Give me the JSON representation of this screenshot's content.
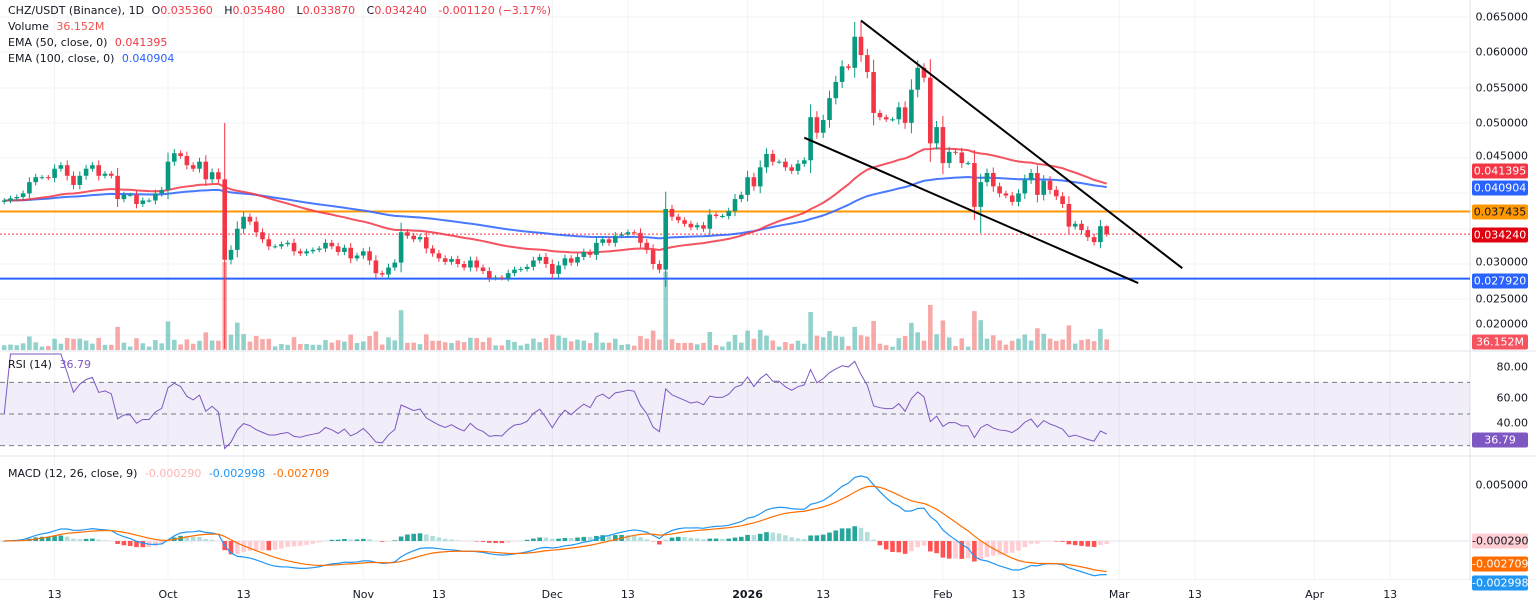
{
  "header": {
    "symbol": "CHZ/USDT (Binance), 1D",
    "open_label": "O",
    "open": "0.035360",
    "high_label": "H",
    "high": "0.035480",
    "low_label": "L",
    "low": "0.033870",
    "close_label": "C",
    "close": "0.034240",
    "change": "-0.001120 (−3.17%)"
  },
  "indicators": {
    "volume": {
      "label": "Volume",
      "value": "36.152M"
    },
    "ema50": {
      "label": "EMA (50, close, 0)",
      "value": "0.041395",
      "color": "#f23645",
      "period": 50
    },
    "ema100": {
      "label": "EMA (100, close, 0)",
      "value": "0.040904",
      "color": "#2962ff",
      "period": 100
    },
    "rsi": {
      "label": "RSI (14)",
      "value": "36.79",
      "color": "#7e57c2",
      "period": 14
    },
    "macd": {
      "label": "MACD (12, 26, close, 9)",
      "hist": "-0.000290",
      "macd": "-0.002998",
      "signal": "-0.002709",
      "macd_color": "#2196f3",
      "signal_color": "#ff6d00"
    }
  },
  "price_axis": [
    "0.065000",
    "0.060000",
    "0.055000",
    "0.050000",
    "0.045000",
    "0.030000",
    "0.025000",
    "0.020000"
  ],
  "rsi_axis": [
    "80.00",
    "60.00",
    "40.00"
  ],
  "macd_axis": [
    "0.005000"
  ],
  "badges": {
    "ema50": "0.041395",
    "ema100": "0.040904",
    "orange_line": "0.037435",
    "last_price": "0.034240",
    "blue_line": "0.027920",
    "volume": "36.152M",
    "rsi": "36.79",
    "macd_hist": "-0.000290",
    "macd_signal": "-0.002709",
    "macd_line": "-0.002998"
  },
  "time_axis": [
    {
      "label": "13",
      "date": "2025-09-13"
    },
    {
      "label": "Oct",
      "date": "2025-10-01"
    },
    {
      "label": "13",
      "date": "2025-10-13"
    },
    {
      "label": "Nov",
      "date": "2025-11-01"
    },
    {
      "label": "13",
      "date": "2025-11-13"
    },
    {
      "label": "Dec",
      "date": "2025-12-01"
    },
    {
      "label": "13",
      "date": "2025-12-13"
    },
    {
      "label": "2026",
      "date": "2026-01-01",
      "bold": true
    },
    {
      "label": "13",
      "date": "2026-01-13"
    },
    {
      "label": "Feb",
      "date": "2026-02-01"
    },
    {
      "label": "13",
      "date": "2026-02-13"
    },
    {
      "label": "Mar",
      "date": "2026-03-01"
    },
    {
      "label": "13",
      "date": "2026-03-13"
    },
    {
      "label": "Apr",
      "date": "2026-04-01"
    },
    {
      "label": "13",
      "date": "2026-04-13"
    }
  ],
  "colors": {
    "up": "#089981",
    "down": "#f23645",
    "vol_up": "#26a69a",
    "vol_down": "#ef5350"
  },
  "chart_data": {
    "type": "candlestick",
    "price_range": [
      0.017,
      0.066
    ],
    "closes_by_month": [
      {
        "month": "2025-09",
        "closes": [
          null,
          null,
          null,
          null,
          0.039,
          0.0393,
          0.0395,
          0.04,
          0.0416,
          0.0423,
          0.0423,
          0.0422,
          0.0435,
          0.044,
          0.0425,
          0.0412,
          0.0425,
          0.0435,
          0.044,
          0.0425,
          0.0428,
          0.0425,
          0.0392,
          0.0398,
          0.0398,
          0.0385,
          0.039,
          0.039,
          0.04,
          0.0405
        ]
      },
      {
        "month": "2025-10",
        "closes": [
          0.0445,
          0.0457,
          0.0453,
          0.044,
          0.0435,
          0.0445,
          0.042,
          0.043,
          0.042,
          0.0306,
          0.032,
          0.035,
          0.0367,
          0.036,
          0.0345,
          0.0335,
          0.0325,
          0.0325,
          0.0328,
          0.033,
          0.0318,
          0.0315,
          0.0318,
          0.032,
          0.0322,
          0.033,
          0.0325,
          0.0317,
          0.0323,
          0.0308,
          0.0312
        ]
      },
      {
        "month": "2025-11",
        "closes": [
          0.0318,
          0.0305,
          0.0287,
          0.0285,
          0.0295,
          0.0302,
          0.0345,
          0.034,
          0.0335,
          0.0338,
          0.0322,
          0.0315,
          0.0308,
          0.0303,
          0.0307,
          0.03,
          0.0295,
          0.0305,
          0.0295,
          0.029,
          0.028,
          0.0281,
          0.028,
          0.0287,
          0.0292,
          0.0293,
          0.0296,
          0.0305,
          0.031,
          0.03
        ]
      },
      {
        "month": "2025-12",
        "closes": [
          0.0286,
          0.0298,
          0.0308,
          0.0302,
          0.031,
          0.0317,
          0.0313,
          0.033,
          0.0335,
          0.033,
          0.034,
          0.0342,
          0.0345,
          0.0344,
          0.033,
          0.032,
          0.03,
          0.0292,
          0.0378,
          0.0367,
          0.0362,
          0.0357,
          0.0352,
          0.0355,
          0.035,
          0.037,
          0.0368,
          0.0368,
          0.0375,
          0.0392,
          0.0398
        ]
      },
      {
        "month": "2026-01",
        "closes": [
          0.0423,
          0.041,
          0.0437,
          0.0456,
          0.0445,
          0.0445,
          0.0437,
          0.0432,
          0.0442,
          0.0447,
          0.0508,
          0.0486,
          0.0504,
          0.0535,
          0.0558,
          0.058,
          0.0578,
          0.0622,
          0.0596,
          0.0572,
          0.0514,
          0.0508,
          0.0505,
          0.0505,
          0.0522,
          0.05,
          0.0547,
          0.0578,
          0.0564,
          0.0471,
          0.0494
        ]
      },
      {
        "month": "2026-02",
        "closes": [
          0.0443,
          0.0459,
          0.0458,
          0.0443,
          0.0443,
          0.0381,
          0.0416,
          0.0429,
          0.041,
          0.04,
          0.0397,
          0.0388,
          0.04,
          0.0419,
          0.0429,
          0.0398,
          0.0418,
          0.0405,
          0.0396,
          0.0385,
          0.0353,
          0.0357,
          0.0348,
          0.0338,
          0.0331,
          0.03536,
          0.03424
        ]
      }
    ],
    "notable_wicks": [
      {
        "date": "2025-10-10",
        "open": 0.042,
        "high": 0.05,
        "low": 0.018
      },
      {
        "date": "2026-01-18",
        "high": 0.0643
      },
      {
        "date": "2026-01-19",
        "high": 0.0645
      },
      {
        "date": "2026-02-07",
        "low": 0.0344
      },
      {
        "date": "2026-02-27",
        "open": 0.03536,
        "high": 0.03548,
        "low": 0.03387
      }
    ],
    "horizontal_lines": [
      {
        "price": 0.037435,
        "color": "#ff9800",
        "style": "solid"
      },
      {
        "price": 0.02792,
        "color": "#2962ff",
        "style": "solid"
      },
      {
        "price": 0.03424,
        "color": "#f23645",
        "style": "dotted"
      }
    ],
    "trendlines": [
      {
        "from": {
          "date": "2026-01-19",
          "price": 0.0645
        },
        "to": {
          "date": "2026-03-11",
          "price": 0.0294
        },
        "color": "#000000"
      },
      {
        "from": {
          "date": "2026-01-10",
          "price": 0.0479
        },
        "to": {
          "date": "2026-03-04",
          "price": 0.0273
        },
        "color": "#000000"
      }
    ],
    "rsi_levels": [
      70,
      50,
      30
    ],
    "rsi_range": [
      20,
      90
    ],
    "macd_range": [
      -0.0035,
      0.006
    ]
  }
}
